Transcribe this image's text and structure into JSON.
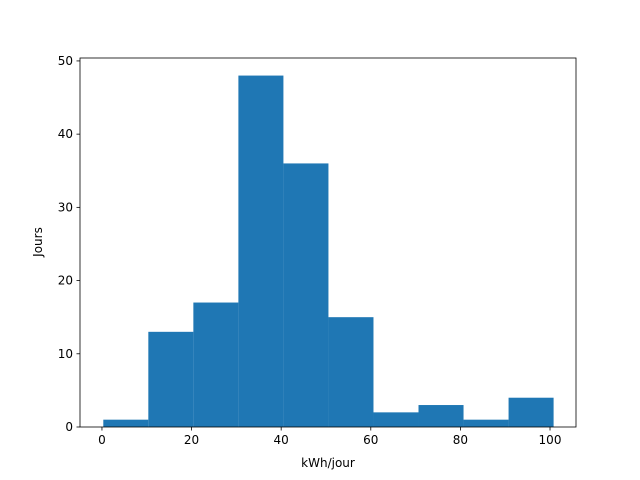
{
  "chart_data": {
    "type": "histogram",
    "xlabel": "kWh/jour",
    "ylabel": "Jours",
    "bins": [
      0.3,
      10.35,
      20.4,
      30.45,
      40.5,
      50.55,
      60.6,
      70.65,
      80.7,
      90.75,
      100.8
    ],
    "counts": [
      1,
      13,
      17,
      48,
      36,
      15,
      2,
      3,
      1,
      4
    ],
    "color": "#1f77b4",
    "xlim": [
      -4.9,
      105.8
    ],
    "xticks": [
      0,
      20,
      40,
      60,
      80,
      100
    ],
    "ylim": [
      0,
      50.4
    ],
    "yticks": [
      0,
      10,
      20,
      30,
      40,
      50
    ]
  }
}
